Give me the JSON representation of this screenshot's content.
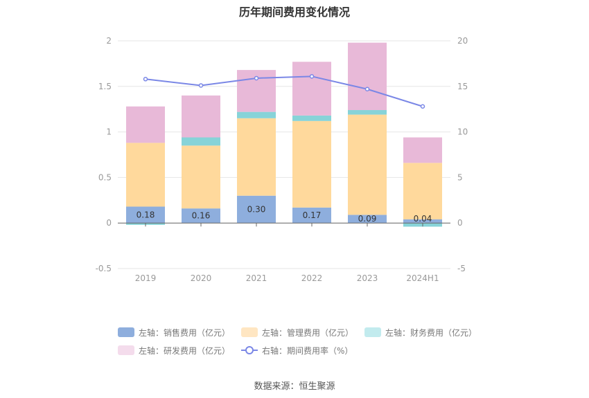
{
  "chart_data": {
    "type": "bar",
    "stacked": true,
    "title": "历年期间费用变化情况",
    "categories": [
      "2019",
      "2020",
      "2021",
      "2022",
      "2023",
      "2024H1"
    ],
    "left_axis": {
      "ylim": [
        -0.5,
        2
      ],
      "ticks": [
        "-0.5",
        "0",
        "0.5",
        "1",
        "1.5",
        "2"
      ],
      "tick_values": [
        -0.5,
        0,
        0.5,
        1,
        1.5,
        2
      ]
    },
    "right_axis": {
      "ylim": [
        -5,
        20
      ],
      "ticks": [
        "-5",
        "0",
        "5",
        "10",
        "15",
        "20"
      ],
      "tick_values": [
        -5,
        0,
        5,
        10,
        15,
        20
      ]
    },
    "series": [
      {
        "name": "左轴：销售费用（亿元）",
        "axis": "left",
        "color": "#8eaedd",
        "values": [
          0.18,
          0.16,
          0.3,
          0.17,
          0.09,
          0.04
        ],
        "labels": [
          "0.18",
          "0.16",
          "0.30",
          "0.17",
          "0.09",
          "0.04"
        ]
      },
      {
        "name": "左轴：管理费用（亿元）",
        "axis": "left",
        "color": "#ffd99c",
        "values": [
          0.7,
          0.69,
          0.85,
          0.95,
          1.1,
          0.62
        ]
      },
      {
        "name": "左轴：财务费用（亿元）",
        "axis": "left",
        "color": "#87d3d8",
        "values": [
          -0.02,
          0.09,
          0.07,
          0.06,
          0.05,
          -0.04
        ]
      },
      {
        "name": "左轴：研发费用（亿元）",
        "axis": "left",
        "color": "#e8b9d8",
        "values": [
          0.4,
          0.46,
          0.46,
          0.59,
          0.74,
          0.28
        ]
      },
      {
        "name": "右轴：期间费用率（%）",
        "axis": "right",
        "type": "line",
        "color": "#7a87e6",
        "values": [
          15.8,
          15.1,
          15.9,
          16.1,
          14.7,
          12.8
        ]
      }
    ],
    "legend_position": "bottom"
  },
  "legend_colors": {
    "sales": "#8eaedd",
    "admin": "#ffe6c2",
    "finance": "#c2ebee",
    "rd": "#f4dcec"
  },
  "source": "数据来源：恒生聚源"
}
